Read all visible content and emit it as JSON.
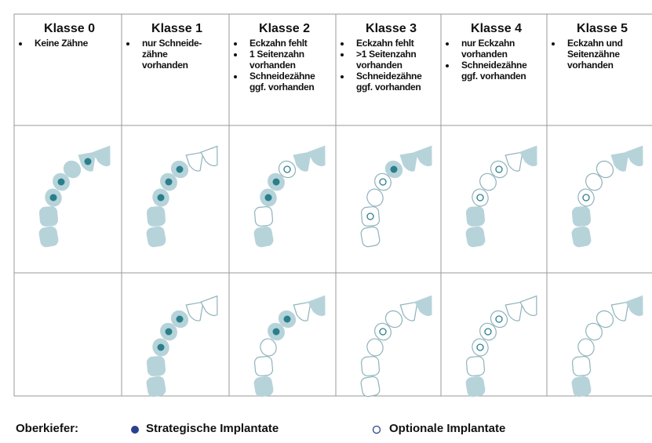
{
  "columns": [
    {
      "title": "Klasse 0",
      "bullets": [
        "Keine Zähne"
      ]
    },
    {
      "title": "Klasse 1",
      "bullets": [
        "nur Schneide-\nzähne\nvorhanden"
      ]
    },
    {
      "title": "Klasse 2",
      "bullets": [
        "Eckzahn fehlt",
        "1 Seitenzahn\nvorhanden",
        "Schneidezähne\nggf. vorhanden"
      ]
    },
    {
      "title": "Klasse 3",
      "bullets": [
        "Eckzahn fehlt",
        ">1 Seitenzahn\nvorhanden",
        "Schneidezähne\nggf. vorhanden"
      ]
    },
    {
      "title": "Klasse 4",
      "bullets": [
        "nur Eckzahn\nvorhanden",
        "Schneidezähne\nggf. vorhanden"
      ]
    },
    {
      "title": "Klasse 5",
      "bullets": [
        "Eckzahn und\nSeitenzähne\nvorhanden"
      ]
    }
  ],
  "legend": {
    "label": "Oberkiefer:",
    "strategic": "Strategische Implantate",
    "optional": "Optionale Implantate"
  }
}
